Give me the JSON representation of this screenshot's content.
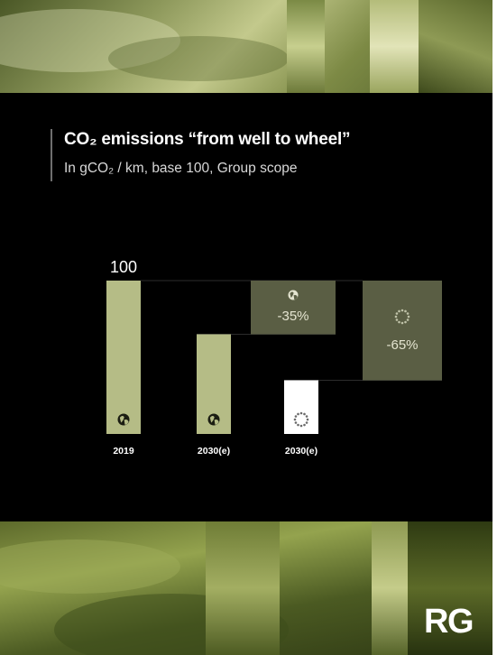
{
  "title": "CO₂ emissions “from well to wheel”",
  "subtitle": "In gCO₂ / km, base 100, Group scope",
  "brand": "RG",
  "colors": {
    "background": "#000000",
    "bar_world": "#b5bc86",
    "bar_europe": "#ffffff",
    "reduction_box": "#5a5e44",
    "label_text": "#e4e4d0"
  },
  "chart_data": {
    "type": "bar",
    "categories": [
      "2019",
      "2030(e)",
      "2030(e)"
    ],
    "values": [
      100,
      65,
      35
    ],
    "scope_icons": [
      "globe-icon",
      "globe-icon",
      "eu-stars-icon"
    ],
    "data_labels": [
      "100",
      "",
      ""
    ],
    "reductions": [
      {
        "label": "-35%",
        "from": 100,
        "to": 65,
        "icon": "globe-icon"
      },
      {
        "label": "-65%",
        "from": 100,
        "to": 35,
        "icon": "eu-stars-icon"
      }
    ],
    "ylim": [
      0,
      100
    ]
  }
}
